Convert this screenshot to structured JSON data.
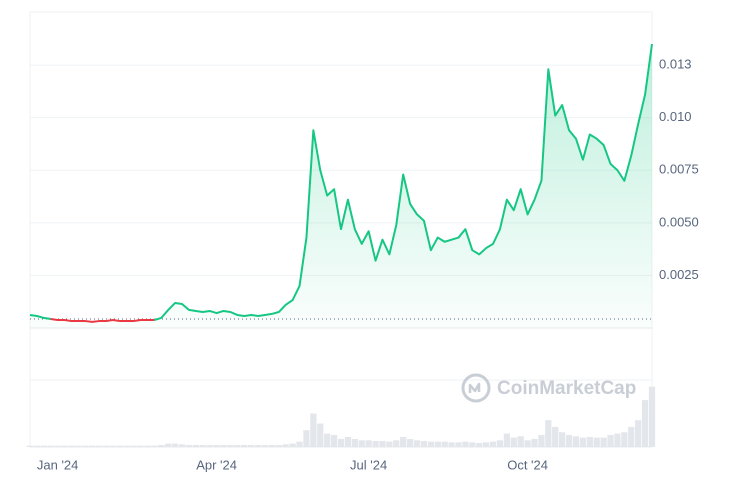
{
  "chart_data": {
    "type": "line",
    "categories": [
      null,
      null,
      null,
      null,
      "Jan '24",
      null,
      null,
      null,
      null,
      null,
      null,
      null,
      null,
      null,
      null,
      null,
      null,
      null,
      null,
      null,
      null,
      null,
      null,
      null,
      null,
      null,
      null,
      "Apr '24",
      null,
      null,
      null,
      null,
      null,
      null,
      null,
      null,
      null,
      null,
      null,
      null,
      null,
      null,
      null,
      null,
      null,
      null,
      null,
      null,
      null,
      "Jul '24",
      null,
      null,
      null,
      null,
      null,
      null,
      null,
      null,
      null,
      null,
      null,
      null,
      null,
      null,
      null,
      null,
      null,
      null,
      null,
      null,
      null,
      null,
      "Oct '24",
      null,
      null,
      null,
      null,
      null,
      null,
      null,
      null,
      null,
      null,
      null,
      null,
      null,
      null,
      null,
      null,
      null,
      null
    ],
    "series": [
      {
        "color": "#16c784",
        "down_color": "#ea3943",
        "values": [
          0.00062,
          0.00057,
          0.00048,
          0.00043,
          0.00038,
          0.00038,
          0.00033,
          0.00033,
          0.00033,
          0.00029,
          0.00033,
          0.00033,
          0.00038,
          0.00033,
          0.00033,
          0.00033,
          0.00038,
          0.00038,
          0.00038,
          0.00048,
          0.00086,
          0.00119,
          0.00114,
          0.00086,
          0.00081,
          0.00076,
          0.00081,
          0.00071,
          0.00081,
          0.00076,
          0.00062,
          0.00057,
          0.00062,
          0.00057,
          0.00062,
          0.00067,
          0.00076,
          0.0011,
          0.00133,
          0.002,
          0.0043,
          0.0094,
          0.0075,
          0.0063,
          0.0066,
          0.0047,
          0.0061,
          0.0047,
          0.004,
          0.0046,
          0.0032,
          0.0042,
          0.0035,
          0.0049,
          0.0073,
          0.0059,
          0.0054,
          0.0051,
          0.0037,
          0.0043,
          0.0041,
          0.0042,
          0.0043,
          0.0047,
          0.0037,
          0.0035,
          0.0038,
          0.004,
          0.0047,
          0.0061,
          0.0056,
          0.0066,
          0.0054,
          0.0061,
          0.007,
          0.0123,
          0.0101,
          0.0106,
          0.0094,
          0.009,
          0.008,
          0.0092,
          0.009,
          0.0087,
          0.0078,
          0.0075,
          0.007,
          0.0082,
          0.0097,
          0.0111,
          0.0135
        ]
      }
    ],
    "volume": [
      2,
      2,
      2,
      2,
      2,
      2,
      2,
      2,
      2,
      2,
      2,
      2,
      2,
      2,
      2,
      2,
      2,
      2,
      2,
      3,
      5,
      5,
      4,
      3,
      3,
      3,
      3,
      3,
      3,
      3,
      3,
      3,
      3,
      3,
      3,
      3,
      3,
      4,
      5,
      8,
      25,
      50,
      35,
      20,
      18,
      12,
      15,
      12,
      10,
      10,
      9,
      9,
      8,
      10,
      15,
      12,
      10,
      9,
      8,
      8,
      8,
      7,
      7,
      8,
      7,
      6,
      7,
      8,
      10,
      20,
      14,
      16,
      10,
      12,
      18,
      40,
      30,
      22,
      18,
      16,
      14,
      15,
      14,
      14,
      18,
      20,
      22,
      30,
      40,
      70,
      90
    ],
    "volume_lim": [
      0,
      100
    ],
    "volume_color": "#e3e6ea",
    "baseline": 0.00043,
    "ylim": [
      0,
      0.015
    ],
    "yticks": [
      0.0025,
      {
        "value": 0.005,
        "label": "0.0050"
      },
      0.0075,
      {
        "value": 0.01,
        "label": "0.010"
      },
      {
        "value": 0.0125,
        "label": "0.013"
      }
    ],
    "grid": true,
    "watermark": "CoinMarketCap"
  }
}
